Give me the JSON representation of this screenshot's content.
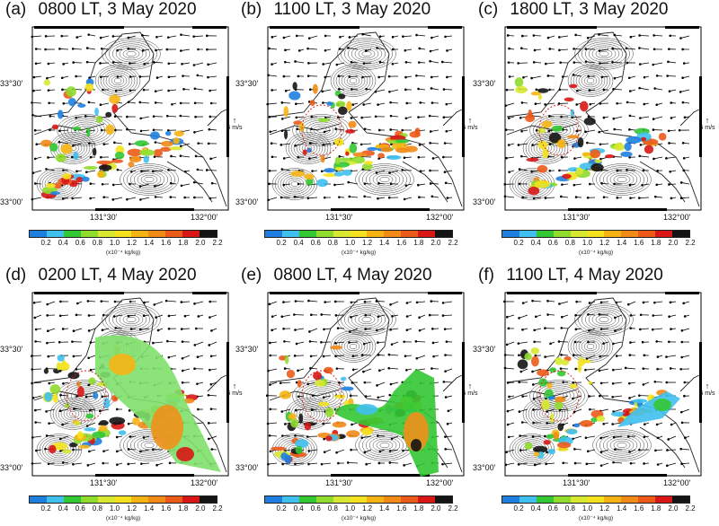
{
  "panels": [
    {
      "label": "(a)",
      "time": "0800 LT, 3 May 2020",
      "lat_ticks": [
        "33°30'",
        "33°00'"
      ],
      "lon_ticks": [
        "131°30'",
        "132°00'"
      ],
      "ref_vector": "5 m/s",
      "plume": "none",
      "dashed_circle": false
    },
    {
      "label": "(b)",
      "time": "1100 LT, 3 May 2020",
      "lat_ticks": [
        "33°30'",
        "33°00'"
      ],
      "lon_ticks": [
        "131°30'",
        "132°00'"
      ],
      "ref_vector": "5 m/s",
      "plume": "none",
      "dashed_circle": true
    },
    {
      "label": "(c)",
      "time": "1800 LT, 3 May 2020",
      "lat_ticks": [
        "33°30'",
        "33°00'"
      ],
      "lon_ticks": [
        "131°30'",
        "132°00'"
      ],
      "ref_vector": "5 m/s",
      "plume": "none",
      "dashed_circle": true
    },
    {
      "label": "(d)",
      "time": "0200 LT, 4 May 2020",
      "lat_ticks": [
        "33°30'",
        "33°00'"
      ],
      "lon_ticks": [
        "131°30'",
        "132°00'"
      ],
      "ref_vector": "5 m/s",
      "plume": "large southeast",
      "dashed_circle": true
    },
    {
      "label": "(e)",
      "time": "0800 LT, 4 May 2020",
      "lat_ticks": [
        "33°30'",
        "33°00'"
      ],
      "lon_ticks": [
        "131°30'",
        "132°00'"
      ],
      "ref_vector": "5 m/s",
      "plume": "east and southeast",
      "dashed_circle": true
    },
    {
      "label": "(f)",
      "time": "1100 LT, 4 May 2020",
      "lat_ticks": [
        "33°30'",
        "33°00'"
      ],
      "lon_ticks": [
        "131°30'",
        "132°00'"
      ],
      "ref_vector": "5 m/s",
      "plume": "small east",
      "dashed_circle": true
    }
  ],
  "colorbar": {
    "ticks": [
      "0.2",
      "0.4",
      "0.6",
      "0.8",
      "1.0",
      "1.2",
      "1.4",
      "1.6",
      "1.8",
      "2.0",
      "2.2"
    ],
    "unit": "(x10⁻⁴ kg/kg)",
    "colors": [
      "#1e7fe0",
      "#3fc0ef",
      "#33c733",
      "#8fdc2e",
      "#d8e830",
      "#f4e21e",
      "#f6b414",
      "#f28a18",
      "#ec5a1a",
      "#d81616",
      "#141414"
    ]
  }
}
